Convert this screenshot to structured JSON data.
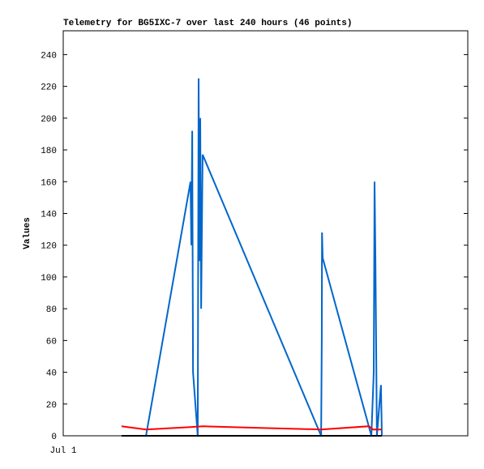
{
  "chart_data": {
    "type": "line",
    "title": "Telemetry for BG5IXC-7 over last 240 hours (46 points)",
    "y_label": "Values",
    "xlim": [
      0,
      240
    ],
    "xticks": [
      {
        "value": 0,
        "label": "Jul 1"
      }
    ],
    "ylim": [
      0,
      255
    ],
    "yticks": [
      0,
      20,
      40,
      60,
      80,
      100,
      120,
      140,
      160,
      180,
      200,
      220,
      240
    ],
    "series": [
      {
        "color": "#0066cc",
        "x": [
          49.1,
          75.5,
          76.0,
          76.5,
          77.0,
          79.8,
          80.3,
          80.8,
          81.3,
          81.8,
          82.7,
          153.0,
          153.4,
          153.5,
          153.9,
          182.8,
          184.2,
          184.7,
          185.2,
          186.1,
          188.5,
          189.0
        ],
        "values": [
          0,
          160,
          120,
          192,
          40,
          0,
          225,
          110,
          200,
          80,
          177,
          0,
          60,
          128,
          112,
          0,
          40,
          160,
          110,
          0,
          32,
          0
        ]
      },
      {
        "color": "#ff0000",
        "x": [
          34.6,
          49.1,
          75.5,
          82.7,
          116.4,
          153.0,
          181.3,
          183.7,
          189.0
        ],
        "values": [
          6,
          4,
          5.5,
          6,
          5,
          4,
          6,
          4,
          4
        ]
      },
      {
        "color": "#000000",
        "x": [
          34.6,
          189.0
        ],
        "values": [
          0,
          0
        ]
      }
    ]
  }
}
